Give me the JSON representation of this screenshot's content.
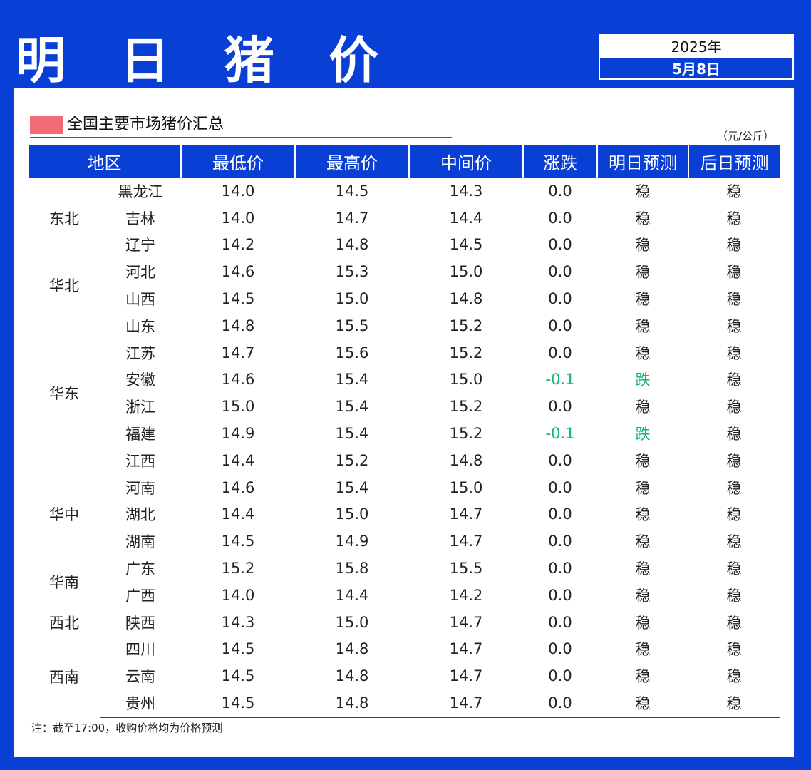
{
  "header": {
    "title": "明 日 猪 价",
    "year": "2025年",
    "date": "5月8日"
  },
  "section": {
    "title": "全国主要市场猪价汇总",
    "unit": "（元/公斤）"
  },
  "table": {
    "columns": [
      "地区",
      "最低价",
      "最高价",
      "中间价",
      "涨跌",
      "明日预测",
      "后日预测"
    ],
    "regions": [
      {
        "name": "东北",
        "rowspan": 3
      },
      {
        "name": "华北",
        "rowspan": 2
      },
      {
        "name": "华东",
        "rowspan": 6
      },
      {
        "name": "华中",
        "rowspan": 3
      },
      {
        "name": "华南",
        "rowspan": 2
      },
      {
        "name": "西北",
        "rowspan": 1
      },
      {
        "name": "西南",
        "rowspan": 3
      }
    ],
    "rows": [
      {
        "province": "黑龙江",
        "low": "14.0",
        "high": "14.5",
        "mid": "14.3",
        "change": "0.0",
        "tomorrow": "稳",
        "after": "稳"
      },
      {
        "province": "吉林",
        "low": "14.0",
        "high": "14.7",
        "mid": "14.4",
        "change": "0.0",
        "tomorrow": "稳",
        "after": "稳"
      },
      {
        "province": "辽宁",
        "low": "14.2",
        "high": "14.8",
        "mid": "14.5",
        "change": "0.0",
        "tomorrow": "稳",
        "after": "稳"
      },
      {
        "province": "河北",
        "low": "14.6",
        "high": "15.3",
        "mid": "15.0",
        "change": "0.0",
        "tomorrow": "稳",
        "after": "稳"
      },
      {
        "province": "山西",
        "low": "14.5",
        "high": "15.0",
        "mid": "14.8",
        "change": "0.0",
        "tomorrow": "稳",
        "after": "稳"
      },
      {
        "province": "山东",
        "low": "14.8",
        "high": "15.5",
        "mid": "15.2",
        "change": "0.0",
        "tomorrow": "稳",
        "after": "稳"
      },
      {
        "province": "江苏",
        "low": "14.7",
        "high": "15.6",
        "mid": "15.2",
        "change": "0.0",
        "tomorrow": "稳",
        "after": "稳"
      },
      {
        "province": "安徽",
        "low": "14.6",
        "high": "15.4",
        "mid": "15.0",
        "change": "-0.1",
        "tomorrow": "跌",
        "after": "稳"
      },
      {
        "province": "浙江",
        "low": "15.0",
        "high": "15.4",
        "mid": "15.2",
        "change": "0.0",
        "tomorrow": "稳",
        "after": "稳"
      },
      {
        "province": "福建",
        "low": "14.9",
        "high": "15.4",
        "mid": "15.2",
        "change": "-0.1",
        "tomorrow": "跌",
        "after": "稳"
      },
      {
        "province": "江西",
        "low": "14.4",
        "high": "15.2",
        "mid": "14.8",
        "change": "0.0",
        "tomorrow": "稳",
        "after": "稳"
      },
      {
        "province": "河南",
        "low": "14.6",
        "high": "15.4",
        "mid": "15.0",
        "change": "0.0",
        "tomorrow": "稳",
        "after": "稳"
      },
      {
        "province": "湖北",
        "low": "14.4",
        "high": "15.0",
        "mid": "14.7",
        "change": "0.0",
        "tomorrow": "稳",
        "after": "稳"
      },
      {
        "province": "湖南",
        "low": "14.5",
        "high": "14.9",
        "mid": "14.7",
        "change": "0.0",
        "tomorrow": "稳",
        "after": "稳"
      },
      {
        "province": "广东",
        "low": "15.2",
        "high": "15.8",
        "mid": "15.5",
        "change": "0.0",
        "tomorrow": "稳",
        "after": "稳"
      },
      {
        "province": "广西",
        "low": "14.0",
        "high": "14.4",
        "mid": "14.2",
        "change": "0.0",
        "tomorrow": "稳",
        "after": "稳"
      },
      {
        "province": "陕西",
        "low": "14.3",
        "high": "15.0",
        "mid": "14.7",
        "change": "0.0",
        "tomorrow": "稳",
        "after": "稳"
      },
      {
        "province": "四川",
        "low": "14.5",
        "high": "14.8",
        "mid": "14.7",
        "change": "0.0",
        "tomorrow": "稳",
        "after": "稳"
      },
      {
        "province": "云南",
        "low": "14.5",
        "high": "14.8",
        "mid": "14.7",
        "change": "0.0",
        "tomorrow": "稳",
        "after": "稳"
      },
      {
        "province": "贵州",
        "low": "14.5",
        "high": "14.8",
        "mid": "14.7",
        "change": "0.0",
        "tomorrow": "稳",
        "after": "稳"
      }
    ]
  },
  "note": "注：截至17:00，收购价格均为价格预测",
  "colors": {
    "brand_blue": "#0a3fd6",
    "down_green": "#14b36a",
    "accent_pink": "#f26b76"
  }
}
